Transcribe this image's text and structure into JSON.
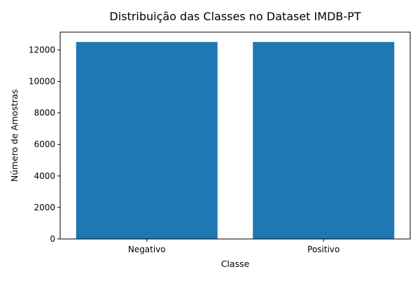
{
  "chart_data": {
    "type": "bar",
    "title": "Distribuição das Classes no Dataset IMDB-PT",
    "xlabel": "Classe",
    "ylabel": "Número de Amostras",
    "categories": [
      "Negativo",
      "Positivo"
    ],
    "values": [
      12500,
      12500
    ],
    "ylim": [
      0,
      13125
    ],
    "yticks": [
      0,
      2000,
      4000,
      6000,
      8000,
      10000,
      12000
    ],
    "grid": false,
    "bar_color": "#1f77b4"
  }
}
